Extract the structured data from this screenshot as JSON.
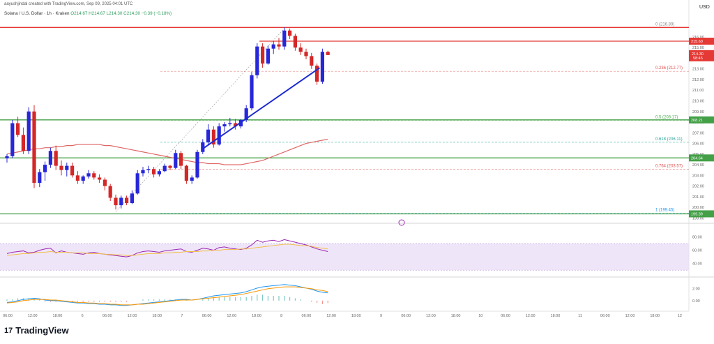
{
  "header": {
    "author_line": "aayushjindal created with TradingView.com, Sep 09, 2025 04:01 UTC",
    "symbol": "Solana / U.S. Dollar · 1h · Kraken",
    "ohlc": "O214.67 H214.67 L214.30 C214.30 −0.39 (−0.18%)",
    "currency": "USD"
  },
  "footer": {
    "logo": "17",
    "name": "TradingView"
  },
  "price_box": {
    "price": "214.30",
    "timer": "58:45"
  },
  "chart_data": [
    {
      "type": "candlestick",
      "title": "Solana / U.S. Dollar · 1h · Kraken",
      "y_ticks": [
        "216.00",
        "215.00",
        "214.00",
        "213.00",
        "212.00",
        "211.00",
        "210.00",
        "209.00",
        "208.00",
        "207.00",
        "206.00",
        "205.00",
        "204.00",
        "203.00",
        "202.00",
        "201.00",
        "200.00",
        "199.00"
      ],
      "ylim": [
        198.7,
        217.5
      ],
      "x_ticks": [
        "06:00",
        "12:00",
        "18:00",
        "6",
        "06:00",
        "12:00",
        "18:00",
        "7",
        "06:00",
        "12:00",
        "18:00",
        "8",
        "06:00",
        "12:00",
        "18:00",
        "9",
        "06:00",
        "12:00",
        "18:00",
        "10",
        "06:00",
        "12:00",
        "18:00",
        "11",
        "06:00",
        "12:00",
        "18:00",
        "12"
      ],
      "candles": [
        [
          204.6,
          205.0,
          204.2,
          204.8
        ],
        [
          204.8,
          208.2,
          204.6,
          207.9
        ],
        [
          207.9,
          208.5,
          206.6,
          206.8
        ],
        [
          206.8,
          207.5,
          205.0,
          205.3
        ],
        [
          205.3,
          209.4,
          205.0,
          209.0
        ],
        [
          209.0,
          209.6,
          201.8,
          202.3
        ],
        [
          202.3,
          203.6,
          201.9,
          203.3
        ],
        [
          203.3,
          204.3,
          202.5,
          204.0
        ],
        [
          204.0,
          205.6,
          203.7,
          205.3
        ],
        [
          205.3,
          205.8,
          203.5,
          203.9
        ],
        [
          203.9,
          204.4,
          203.0,
          203.5
        ],
        [
          203.5,
          204.2,
          202.9,
          203.9
        ],
        [
          203.9,
          204.2,
          202.8,
          203.0
        ],
        [
          203.0,
          203.4,
          202.2,
          202.5
        ],
        [
          202.5,
          203.0,
          202.2,
          202.9
        ],
        [
          202.9,
          203.5,
          202.7,
          203.2
        ],
        [
          203.2,
          203.4,
          202.6,
          202.8
        ],
        [
          202.8,
          203.1,
          202.3,
          202.6
        ],
        [
          202.6,
          202.8,
          201.6,
          202.0
        ],
        [
          202.0,
          202.2,
          200.6,
          200.9
        ],
        [
          200.9,
          201.2,
          199.8,
          200.2
        ],
        [
          200.2,
          201.1,
          199.9,
          200.9
        ],
        [
          200.9,
          201.1,
          200.2,
          200.4
        ],
        [
          200.4,
          201.6,
          200.3,
          201.3
        ],
        [
          201.3,
          203.5,
          201.2,
          203.2
        ],
        [
          203.2,
          203.8,
          202.9,
          203.5
        ],
        [
          203.5,
          203.9,
          203.2,
          203.6
        ],
        [
          203.6,
          203.8,
          202.8,
          203.1
        ],
        [
          203.1,
          203.6,
          202.9,
          203.4
        ],
        [
          203.4,
          204.1,
          203.3,
          203.9
        ],
        [
          203.9,
          204.0,
          203.5,
          203.7
        ],
        [
          203.7,
          205.4,
          203.6,
          205.1
        ],
        [
          205.1,
          205.3,
          203.6,
          203.9
        ],
        [
          203.9,
          204.0,
          202.2,
          202.5
        ],
        [
          202.5,
          203.0,
          202.2,
          202.8
        ],
        [
          202.8,
          205.4,
          202.7,
          205.2
        ],
        [
          205.2,
          206.4,
          205.0,
          206.1
        ],
        [
          206.1,
          207.8,
          205.9,
          207.3
        ],
        [
          207.3,
          207.6,
          205.6,
          205.9
        ],
        [
          205.9,
          207.9,
          205.8,
          207.6
        ],
        [
          207.6,
          208.0,
          207.1,
          207.8
        ],
        [
          207.8,
          208.4,
          207.6,
          207.9
        ],
        [
          207.9,
          208.3,
          207.3,
          207.6
        ],
        [
          207.6,
          208.3,
          207.4,
          208.2
        ],
        [
          208.2,
          209.6,
          208.0,
          209.3
        ],
        [
          209.3,
          212.7,
          209.1,
          212.4
        ],
        [
          212.4,
          215.4,
          212.1,
          215.1
        ],
        [
          215.1,
          215.4,
          213.1,
          213.5
        ],
        [
          213.5,
          215.2,
          213.4,
          214.9
        ],
        [
          214.9,
          215.6,
          214.4,
          215.3
        ],
        [
          215.3,
          215.9,
          214.8,
          215.1
        ],
        [
          215.1,
          216.9,
          214.8,
          216.6
        ],
        [
          216.6,
          216.8,
          215.8,
          216.1
        ],
        [
          216.1,
          216.3,
          214.7,
          215.0
        ],
        [
          215.0,
          215.4,
          214.3,
          214.6
        ],
        [
          214.6,
          214.9,
          213.9,
          214.2
        ],
        [
          214.2,
          214.5,
          213.0,
          213.3
        ],
        [
          213.3,
          213.5,
          211.5,
          211.8
        ],
        [
          211.8,
          214.9,
          211.6,
          214.6
        ],
        [
          214.6,
          214.7,
          214.3,
          214.3
        ]
      ],
      "ma": [
        205.0,
        205.1,
        205.2,
        205.3,
        205.4,
        205.5,
        205.5,
        205.6,
        205.6,
        205.7,
        205.7,
        205.8,
        205.8,
        205.9,
        205.9,
        205.9,
        205.9,
        205.9,
        205.8,
        205.8,
        205.7,
        205.6,
        205.5,
        205.4,
        205.3,
        205.2,
        205.1,
        205.0,
        204.9,
        204.8,
        204.7,
        204.6,
        204.5,
        204.4,
        204.3,
        204.2,
        204.2,
        204.1,
        204.1,
        204.1,
        204.0,
        204.0,
        204.0,
        204.0,
        204.1,
        204.2,
        204.3,
        204.4,
        204.6,
        204.8,
        205.0,
        205.2,
        205.4,
        205.6,
        205.8,
        206.0,
        206.1,
        206.2,
        206.3,
        206.4
      ],
      "fib_levels": [
        {
          "ratio": "0",
          "price": 216.89,
          "label": "0 (216.89)",
          "color": "#888888"
        },
        {
          "ratio": "0.236",
          "price": 212.77,
          "label": "0.236 (212.77)",
          "color": "#e05252"
        },
        {
          "ratio": "0.5",
          "price": 208.17,
          "label": "0.5 (208.17)",
          "color": "#4caf50"
        },
        {
          "ratio": "0.618",
          "price": 206.11,
          "label": "0.618 (206.11)",
          "color": "#26a69a"
        },
        {
          "ratio": "0.764",
          "price": 203.57,
          "label": "0.764 (203.57)",
          "color": "#e05252"
        },
        {
          "ratio": "1",
          "price": 199.45,
          "label": "1 (199.45)",
          "color": "#2196f3"
        }
      ],
      "horizontal_lines": [
        {
          "price": 215.6,
          "label": "215.60",
          "color": "#e53935"
        },
        {
          "price": 208.21,
          "label": "208.21",
          "color": "#43a047"
        },
        {
          "price": 204.64,
          "label": "204.64",
          "color": "#43a047"
        },
        {
          "price": 199.39,
          "label": "199.39",
          "color": "#43a047"
        }
      ],
      "trendline": {
        "from": [
          36,
          205.5
        ],
        "to": [
          57.5,
          213.1
        ],
        "color": "#1e2bd1"
      }
    },
    {
      "type": "line",
      "name": "RSI",
      "y_ticks": [
        "80.00",
        "60.00",
        "40.00"
      ],
      "ylim": [
        25,
        90
      ],
      "band": [
        30,
        70
      ],
      "series": [
        {
          "values": [
            55,
            57,
            58,
            59,
            56,
            57,
            60,
            62,
            63,
            56,
            59,
            57,
            56,
            55,
            54,
            56,
            57,
            55,
            54,
            53,
            52,
            51,
            50,
            52,
            56,
            58,
            59,
            58,
            57,
            59,
            60,
            61,
            62,
            58,
            57,
            60,
            63,
            62,
            60,
            64,
            65,
            63,
            62,
            61,
            63,
            68,
            75,
            72,
            74,
            75,
            73,
            76,
            74,
            72,
            70,
            68,
            65,
            62,
            60,
            58
          ]
        },
        {
          "values": [
            52,
            53,
            54,
            55,
            55,
            56,
            57,
            57,
            58,
            57,
            57,
            57,
            56,
            56,
            56,
            55,
            55,
            55,
            54,
            54,
            53,
            53,
            52,
            52,
            53,
            54,
            55,
            55,
            55,
            56,
            56,
            57,
            57,
            58,
            58,
            58,
            59,
            59,
            60,
            60,
            61,
            61,
            61,
            62,
            62,
            63,
            64,
            65,
            66,
            67,
            68,
            69,
            69,
            68,
            67,
            67,
            66,
            64,
            63,
            62
          ]
        }
      ]
    },
    {
      "type": "line",
      "name": "MACD",
      "y_ticks": [
        "2.00",
        "0.00"
      ],
      "ylim": [
        -1.3,
        3.6
      ],
      "series": [
        {
          "values": [
            -0.3,
            -0.2,
            0,
            0.2,
            0.3,
            0.4,
            0.3,
            0.1,
            0,
            0,
            -0.1,
            -0.2,
            -0.3,
            -0.4,
            -0.4,
            -0.5,
            -0.5,
            -0.6,
            -0.6,
            -0.7,
            -0.7,
            -0.8,
            -0.8,
            -0.7,
            -0.6,
            -0.5,
            -0.4,
            -0.3,
            -0.2,
            -0.1,
            0,
            0.1,
            0.2,
            0.2,
            0.1,
            0.2,
            0.4,
            0.6,
            0.8,
            0.9,
            1.0,
            1.1,
            1.2,
            1.3,
            1.5,
            1.8,
            2.1,
            2.3,
            2.4,
            2.5,
            2.6,
            2.7,
            2.6,
            2.5,
            2.3,
            2.1,
            1.9,
            1.6,
            1.4,
            1.3
          ]
        },
        {
          "values": [
            -0.4,
            -0.3,
            -0.2,
            0,
            0.1,
            0.2,
            0.2,
            0.2,
            0.1,
            0.1,
            0,
            -0.1,
            -0.2,
            -0.3,
            -0.3,
            -0.4,
            -0.4,
            -0.5,
            -0.5,
            -0.6,
            -0.6,
            -0.7,
            -0.7,
            -0.7,
            -0.6,
            -0.6,
            -0.5,
            -0.4,
            -0.3,
            -0.2,
            -0.1,
            0,
            0.1,
            0.1,
            0.1,
            0.2,
            0.3,
            0.4,
            0.5,
            0.6,
            0.7,
            0.8,
            0.9,
            1.0,
            1.2,
            1.4,
            1.6,
            1.8,
            2.0,
            2.1,
            2.2,
            2.3,
            2.3,
            2.3,
            2.2,
            2.1,
            2.0,
            1.8,
            1.7,
            1.5
          ]
        }
      ]
    }
  ]
}
